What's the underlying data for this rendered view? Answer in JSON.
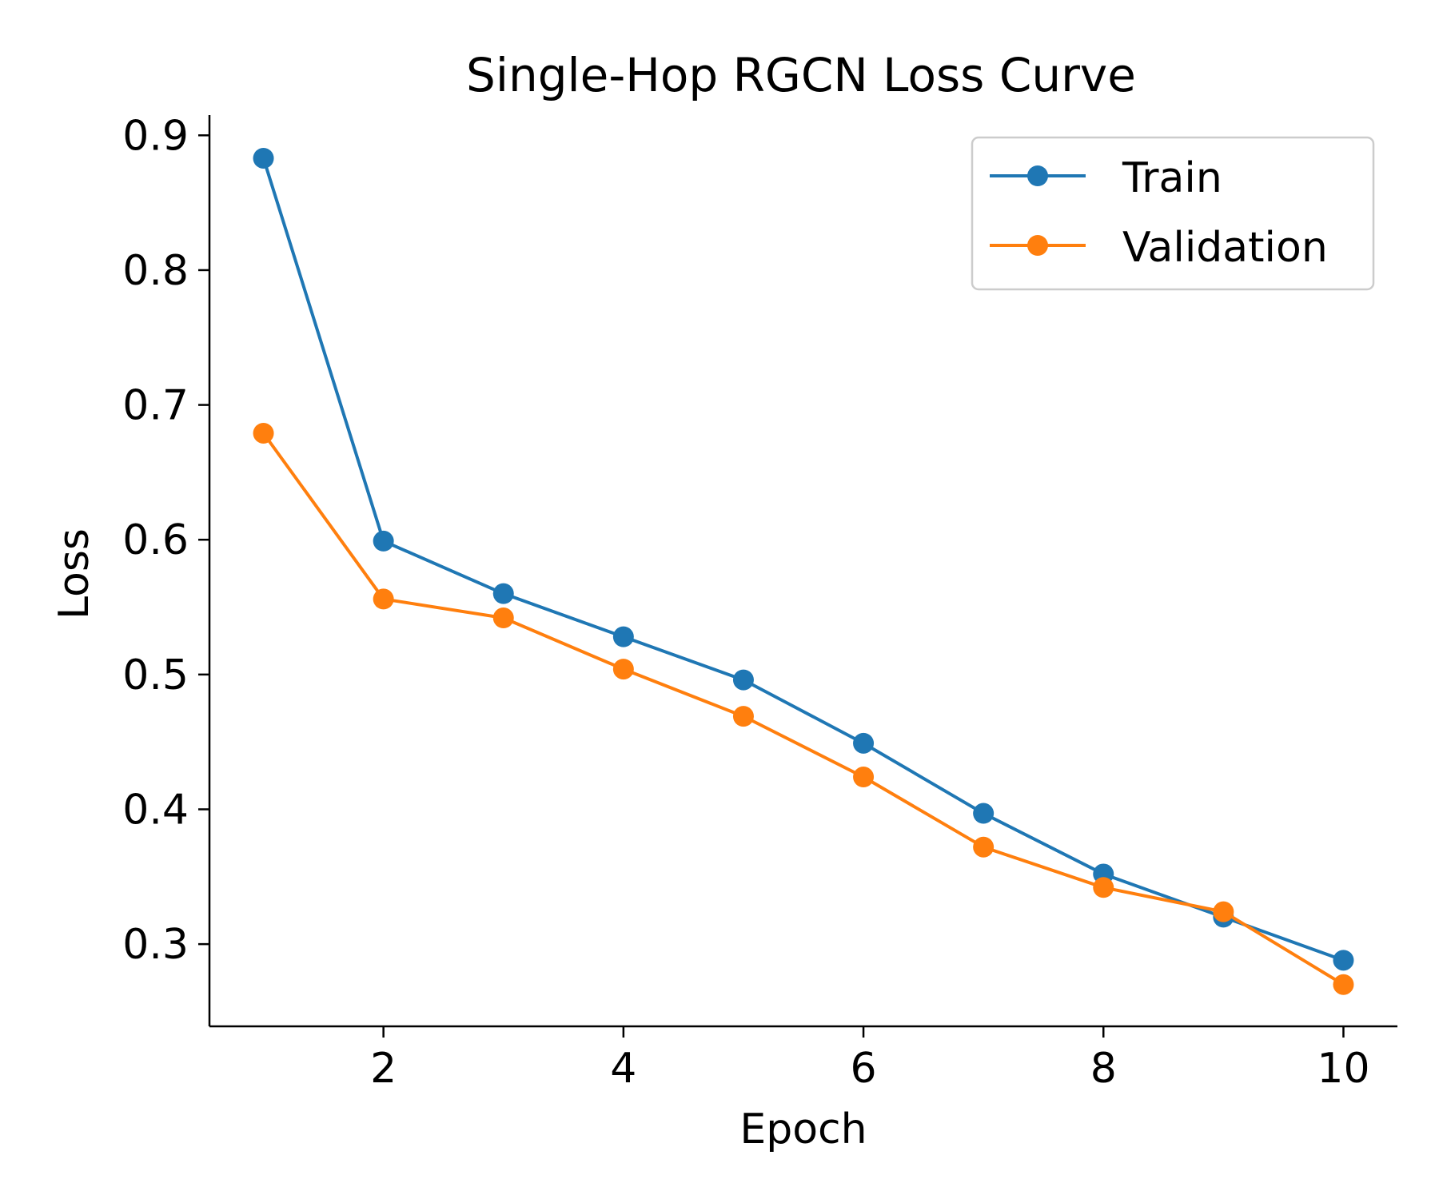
{
  "chart_data": {
    "type": "line",
    "title": "Single-Hop RGCN Loss Curve",
    "xlabel": "Epoch",
    "ylabel": "Loss",
    "xlim": [
      0.55,
      10.45
    ],
    "ylim": [
      0.239,
      0.915
    ],
    "x": [
      1,
      2,
      3,
      4,
      5,
      6,
      7,
      8,
      9,
      10
    ],
    "xticks": [
      2,
      4,
      6,
      8,
      10
    ],
    "xtick_labels": [
      "2",
      "4",
      "6",
      "8",
      "10"
    ],
    "yticks": [
      0.3,
      0.4,
      0.5,
      0.6,
      0.7,
      0.8,
      0.9
    ],
    "ytick_labels": [
      "0.3",
      "0.4",
      "0.5",
      "0.6",
      "0.7",
      "0.8",
      "0.9"
    ],
    "grid": false,
    "legend_position": "top-right",
    "series": [
      {
        "name": "Train",
        "color": "#1f77b4",
        "marker": "circle",
        "values": [
          0.883,
          0.599,
          0.56,
          0.528,
          0.496,
          0.449,
          0.397,
          0.352,
          0.32,
          0.288
        ]
      },
      {
        "name": "Validation",
        "color": "#ff7f0e",
        "marker": "circle",
        "values": [
          0.679,
          0.556,
          0.542,
          0.504,
          0.469,
          0.424,
          0.372,
          0.342,
          0.324,
          0.27
        ]
      }
    ]
  }
}
